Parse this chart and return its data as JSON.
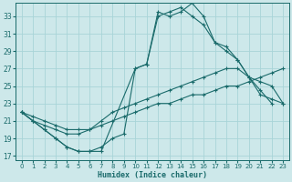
{
  "xlabel": "Humidex (Indice chaleur)",
  "bg_color": "#cde8ea",
  "grid_color": "#a8d4d8",
  "line_color": "#1a6b6b",
  "xlim": [
    -0.5,
    23.5
  ],
  "ylim": [
    16.5,
    34.5
  ],
  "xticks": [
    0,
    1,
    2,
    3,
    4,
    5,
    6,
    7,
    8,
    9,
    10,
    11,
    12,
    13,
    14,
    15,
    16,
    17,
    18,
    19,
    20,
    21,
    22,
    23
  ],
  "yticks": [
    17,
    19,
    21,
    23,
    25,
    27,
    29,
    31,
    33
  ],
  "series": [
    {
      "x": [
        0,
        1,
        2,
        3,
        4,
        5,
        6,
        7,
        10,
        11,
        12,
        13,
        14,
        15,
        16,
        17,
        18,
        19,
        20,
        21,
        22
      ],
      "y": [
        22,
        21,
        20,
        19,
        18,
        17.5,
        17.5,
        17.5,
        27,
        27.5,
        33.5,
        33,
        33.5,
        34.5,
        33,
        30,
        29.5,
        28,
        26,
        24.5,
        23
      ]
    },
    {
      "x": [
        0,
        1,
        2,
        3,
        4,
        5,
        6,
        7,
        8,
        9,
        10,
        11,
        12,
        13,
        14,
        15,
        16,
        17,
        18,
        19,
        20,
        21,
        22,
        23
      ],
      "y": [
        22,
        21,
        20,
        19,
        18,
        17.5,
        17.5,
        18,
        19,
        19.5,
        27,
        27.5,
        33,
        33.5,
        34,
        33,
        32,
        30,
        29,
        28,
        26,
        24,
        23.5,
        23
      ]
    },
    {
      "x": [
        0,
        1,
        2,
        3,
        4,
        5,
        6,
        7,
        8,
        9,
        10,
        11,
        12,
        13,
        14,
        15,
        16,
        17,
        18,
        19,
        20,
        21,
        22,
        23
      ],
      "y": [
        22,
        21,
        20.5,
        20,
        19.5,
        19.5,
        20,
        21,
        22,
        22.5,
        23,
        23.5,
        24,
        24.5,
        25,
        25.5,
        26,
        26.5,
        27,
        27,
        26,
        25.5,
        25,
        23
      ]
    },
    {
      "x": [
        0,
        1,
        2,
        3,
        4,
        5,
        6,
        7,
        8,
        9,
        10,
        11,
        12,
        13,
        14,
        15,
        16,
        17,
        18,
        19,
        20,
        21,
        22,
        23
      ],
      "y": [
        22,
        21.5,
        21,
        20.5,
        20,
        20,
        20,
        20.5,
        21,
        21.5,
        22,
        22.5,
        23,
        23,
        23.5,
        24,
        24,
        24.5,
        25,
        25,
        25.5,
        26,
        26.5,
        27
      ]
    }
  ]
}
